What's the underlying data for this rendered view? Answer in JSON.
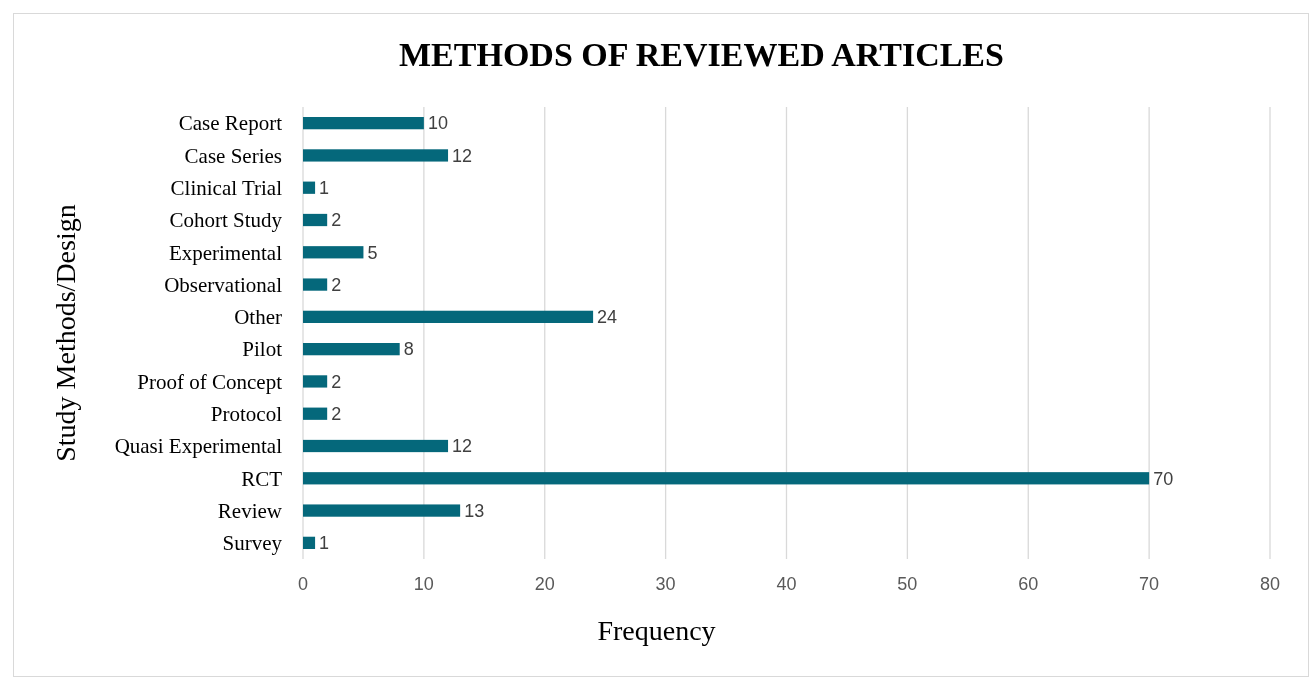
{
  "chart_data": {
    "type": "bar",
    "orientation": "horizontal",
    "title": "METHODS OF REVIEWED ARTICLES",
    "xlabel": "Frequency",
    "ylabel": "Study Methods/Design",
    "categories": [
      "Case Report",
      "Case Series",
      "Clinical Trial",
      "Cohort Study",
      "Experimental",
      "Observational",
      "Other",
      "Pilot",
      "Proof of Concept",
      "Protocol",
      "Quasi Experimental",
      "RCT",
      "Review",
      "Survey"
    ],
    "values": [
      10,
      12,
      1,
      2,
      5,
      2,
      24,
      8,
      2,
      2,
      12,
      70,
      13,
      1
    ],
    "color": "#05687b",
    "xlim": [
      0,
      80
    ],
    "xticks": [
      0,
      10,
      20,
      30,
      40,
      50,
      60,
      70,
      80
    ],
    "grid": "x",
    "data_labels": true
  }
}
